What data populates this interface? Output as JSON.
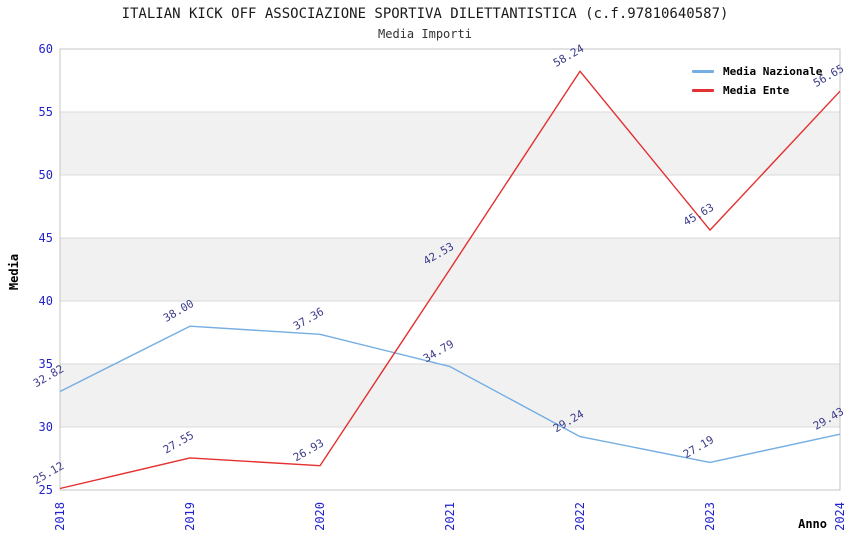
{
  "header": {
    "title": "ITALIAN KICK OFF ASSOCIAZIONE SPORTIVA DILETTANTISTICA (c.f.97810640587)",
    "subtitle": "Media Importi"
  },
  "chart_data": {
    "type": "line",
    "x": [
      "2018",
      "2019",
      "2020",
      "2021",
      "2022",
      "2023",
      "2024"
    ],
    "series": [
      {
        "name": "Media Nazionale",
        "color": "#74aee3",
        "values": [
          32.82,
          38.0,
          37.36,
          34.79,
          29.24,
          27.19,
          29.43
        ],
        "labels": [
          "32.82",
          "38.00",
          "37.36",
          "34.79",
          "29.24",
          "27.19",
          "29.43"
        ]
      },
      {
        "name": "Media Ente",
        "color": "#e43030",
        "values": [
          25.12,
          27.55,
          26.93,
          42.53,
          58.24,
          45.63,
          56.65
        ],
        "labels": [
          "25.12",
          "27.55",
          "26.93",
          "42.53",
          "58.24",
          "45.63",
          "56.65"
        ]
      }
    ],
    "xlabel": "Anno",
    "ylabel": "Media",
    "ylim": [
      25,
      60
    ],
    "ytick_step": 5,
    "yticks": [
      "25",
      "30",
      "35",
      "40",
      "45",
      "50",
      "55",
      "60"
    ],
    "legend_position": "top-right",
    "grid": "horizontal",
    "alternating_bands": true
  },
  "colors": {
    "band": "#f1f1f1",
    "gridline": "#dadada",
    "frame": "#c4c4c4",
    "tick_label": "#2323cd",
    "data_label": "#3c3c8a",
    "axis_title": "#000000"
  }
}
